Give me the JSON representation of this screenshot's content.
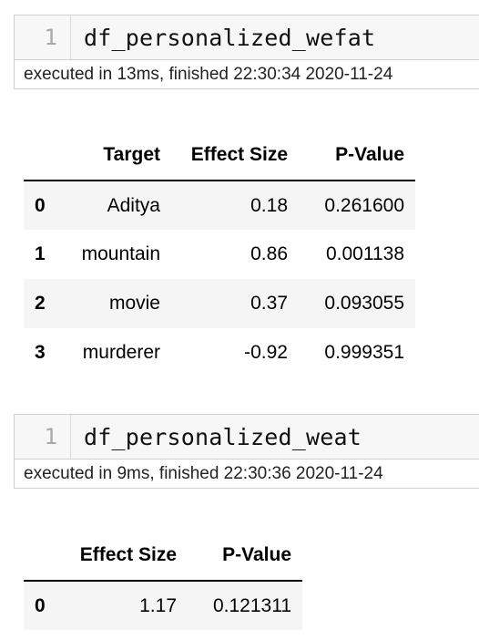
{
  "cell1": {
    "prompt": "1",
    "code": "df_personalized_wefat",
    "exec": "executed in 13ms, finished 22:30:34 2020-11-24"
  },
  "table1": {
    "headers": [
      "",
      "Target",
      "Effect Size",
      "P-Value"
    ],
    "rows": [
      {
        "index": "0",
        "target": "Aditya",
        "effect_size": "0.18",
        "p_value": "0.261600"
      },
      {
        "index": "1",
        "target": "mountain",
        "effect_size": "0.86",
        "p_value": "0.001138"
      },
      {
        "index": "2",
        "target": "movie",
        "effect_size": "0.37",
        "p_value": "0.093055"
      },
      {
        "index": "3",
        "target": "murderer",
        "effect_size": "-0.92",
        "p_value": "0.999351"
      }
    ]
  },
  "cell2": {
    "prompt": "1",
    "code": "df_personalized_weat",
    "exec": "executed in 9ms, finished 22:30:36 2020-11-24"
  },
  "table2": {
    "headers": [
      "",
      "Effect Size",
      "P-Value"
    ],
    "rows": [
      {
        "index": "0",
        "effect_size": "1.17",
        "p_value": "0.121311"
      }
    ]
  }
}
